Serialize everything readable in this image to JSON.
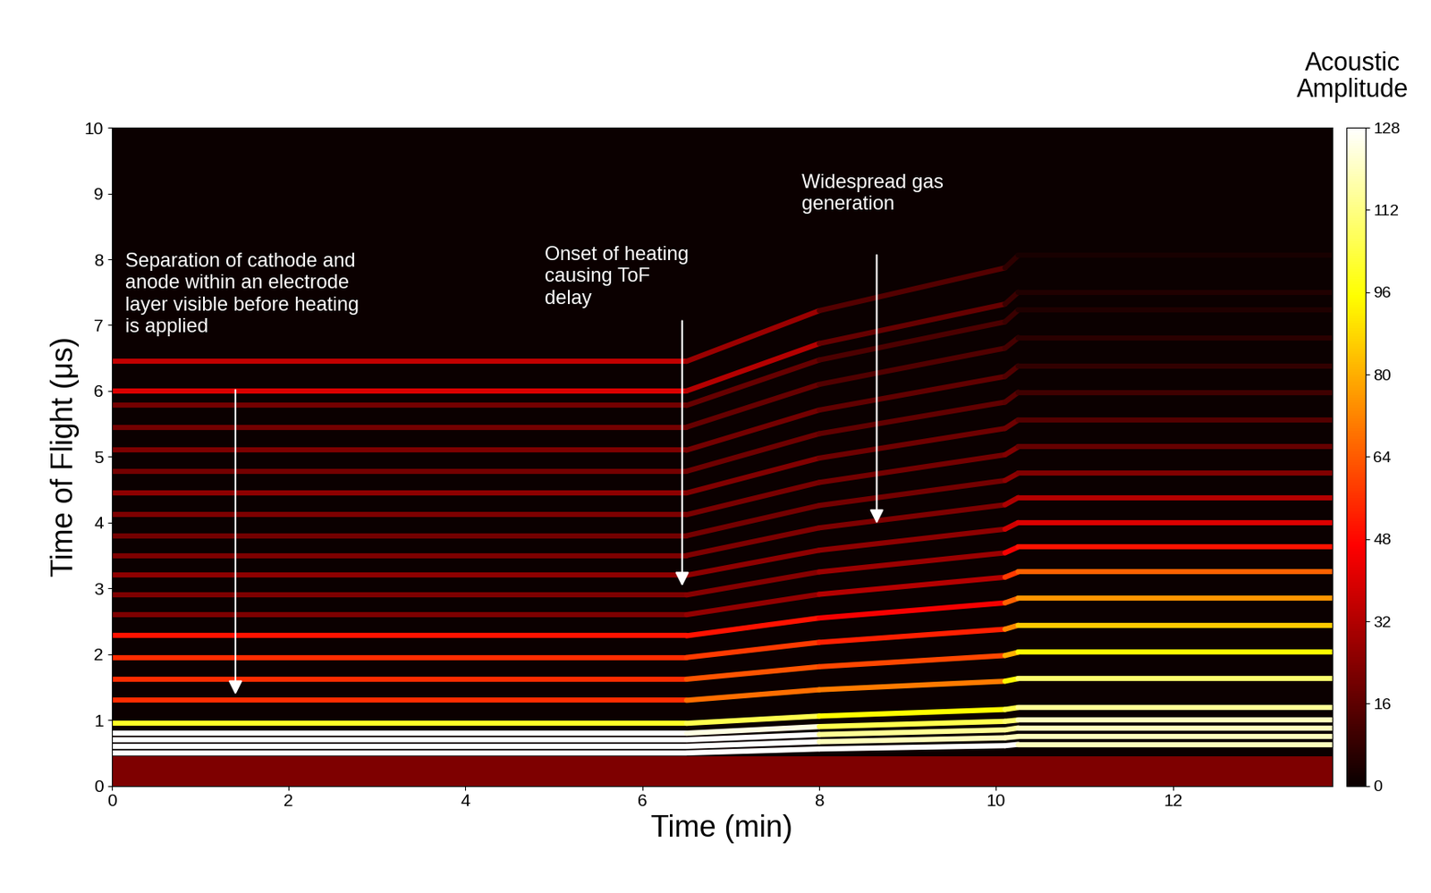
{
  "chart_data": {
    "type": "line",
    "x_label": "Time (min)",
    "y_label": "Time of Flight (μs)",
    "xlim": [
      0,
      13.8
    ],
    "ylim": [
      0,
      10
    ],
    "xticks": [
      0,
      2,
      4,
      6,
      8,
      10,
      12
    ],
    "yticks": [
      0,
      1,
      2,
      3,
      4,
      5,
      6,
      7,
      8,
      9,
      10
    ],
    "grid": false,
    "x": [
      0,
      6.5,
      8.0,
      10.1,
      10.25,
      13.8
    ],
    "series": [
      {
        "type": "area",
        "x": [
          0,
          13.8
        ],
        "values": [
          0.45,
          0.45
        ],
        "amplitude": [
          22,
          22
        ]
      },
      {
        "values": [
          0.5,
          0.5,
          0.56,
          0.61,
          0.63,
          0.63
        ],
        "amplitude": [
          128,
          128,
          128,
          128,
          128,
          110
        ]
      },
      {
        "values": [
          0.6,
          0.6,
          0.67,
          0.73,
          0.75,
          0.75
        ],
        "amplitude": [
          128,
          128,
          128,
          110,
          128,
          110
        ]
      },
      {
        "values": [
          0.7,
          0.7,
          0.78,
          0.85,
          0.88,
          0.88
        ],
        "amplitude": [
          128,
          128,
          128,
          100,
          128,
          110
        ]
      },
      {
        "values": [
          0.8,
          0.8,
          0.9,
          0.98,
          1.0,
          1.0
        ],
        "amplitude": [
          128,
          128,
          120,
          90,
          128,
          110
        ]
      },
      {
        "values": [
          0.95,
          0.95,
          1.06,
          1.16,
          1.19,
          1.19
        ],
        "amplitude": [
          100,
          100,
          110,
          80,
          128,
          100
        ]
      },
      {
        "values": [
          1.3,
          1.3,
          1.46,
          1.59,
          1.63,
          1.63
        ],
        "amplitude": [
          55,
          55,
          80,
          60,
          128,
          90
        ]
      },
      {
        "values": [
          1.62,
          1.62,
          1.81,
          1.98,
          2.03,
          2.03
        ],
        "amplitude": [
          55,
          55,
          70,
          50,
          110,
          80
        ]
      },
      {
        "values": [
          1.95,
          1.95,
          2.18,
          2.38,
          2.44,
          2.44
        ],
        "amplitude": [
          55,
          55,
          60,
          45,
          100,
          70
        ]
      },
      {
        "values": [
          2.28,
          2.28,
          2.55,
          2.78,
          2.85,
          2.85
        ],
        "amplitude": [
          50,
          50,
          50,
          40,
          90,
          60
        ]
      },
      {
        "values": [
          2.6,
          2.6,
          2.91,
          3.17,
          3.25,
          3.25
        ],
        "amplitude": [
          22,
          22,
          30,
          35,
          80,
          50
        ]
      },
      {
        "values": [
          2.9,
          2.9,
          3.25,
          3.54,
          3.63,
          3.63
        ],
        "amplitude": [
          22,
          22,
          25,
          30,
          60,
          40
        ]
      },
      {
        "values": [
          3.2,
          3.2,
          3.58,
          3.9,
          4.0,
          4.0
        ],
        "amplitude": [
          25,
          25,
          25,
          25,
          50,
          30
        ]
      },
      {
        "values": [
          3.5,
          3.5,
          3.92,
          4.27,
          4.38,
          4.38
        ],
        "amplitude": [
          22,
          22,
          22,
          22,
          40,
          25
        ]
      },
      {
        "values": [
          3.8,
          3.8,
          4.26,
          4.64,
          4.75,
          4.75
        ],
        "amplitude": [
          20,
          20,
          20,
          20,
          30,
          15
        ]
      },
      {
        "values": [
          4.12,
          4.12,
          4.61,
          5.03,
          5.15,
          5.15
        ],
        "amplitude": [
          22,
          22,
          20,
          20,
          25,
          10
        ]
      },
      {
        "values": [
          4.45,
          4.45,
          4.98,
          5.43,
          5.56,
          5.56
        ],
        "amplitude": [
          25,
          25,
          20,
          18,
          20,
          8
        ]
      },
      {
        "values": [
          4.78,
          4.78,
          5.35,
          5.83,
          5.98,
          5.98
        ],
        "amplitude": [
          20,
          20,
          18,
          15,
          15,
          5
        ]
      },
      {
        "values": [
          5.1,
          5.1,
          5.71,
          6.22,
          6.38,
          6.38
        ],
        "amplitude": [
          22,
          22,
          18,
          15,
          12,
          3
        ]
      },
      {
        "values": [
          5.45,
          5.45,
          6.1,
          6.65,
          6.81,
          6.81
        ],
        "amplitude": [
          20,
          20,
          15,
          12,
          10,
          2
        ]
      },
      {
        "values": [
          5.78,
          5.78,
          6.47,
          7.05,
          7.23,
          7.23
        ],
        "amplitude": [
          20,
          20,
          15,
          10,
          8,
          0
        ]
      },
      {
        "values": [
          6.0,
          6.0,
          6.72,
          7.32,
          7.5,
          7.5
        ],
        "amplitude": [
          40,
          40,
          25,
          10,
          8,
          0
        ]
      },
      {
        "values": [
          6.45,
          6.45,
          7.22,
          7.87,
          8.06,
          8.06
        ],
        "amplitude": [
          35,
          35,
          20,
          8,
          5,
          0
        ]
      }
    ],
    "colorbar": {
      "label": "Acoustic\nAmplitude",
      "range": [
        0,
        128
      ],
      "ticks": [
        0,
        16,
        32,
        48,
        64,
        80,
        96,
        112,
        128
      ]
    },
    "annotations": [
      {
        "text": "Separation of cathode and\nanode within an electrode\nlayer visible before heating\nis applied",
        "x": 1.4,
        "y": 1.35
      },
      {
        "text": "Onset of heating\ncausing ToF\ndelay",
        "x": 6.45,
        "y": 3.0
      },
      {
        "text": "Widespread gas\ngeneration",
        "x": 8.65,
        "y": 3.95
      }
    ]
  }
}
